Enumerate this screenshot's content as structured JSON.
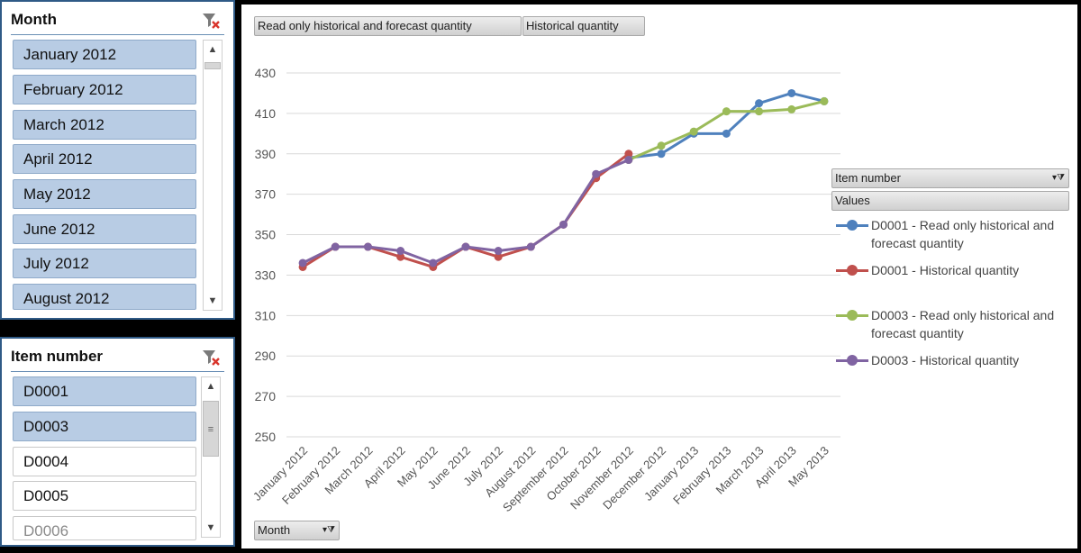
{
  "month_slicer": {
    "title": "Month",
    "items": [
      {
        "label": "January 2012",
        "selected": true
      },
      {
        "label": "February 2012",
        "selected": true
      },
      {
        "label": "March 2012",
        "selected": true
      },
      {
        "label": "April 2012",
        "selected": true
      },
      {
        "label": "May 2012",
        "selected": true
      },
      {
        "label": "June 2012",
        "selected": true
      },
      {
        "label": "July 2012",
        "selected": true
      },
      {
        "label": "August 2012",
        "selected": true
      }
    ]
  },
  "item_slicer": {
    "title": "Item number",
    "items": [
      {
        "label": "D0001",
        "selected": true
      },
      {
        "label": "D0003",
        "selected": true
      },
      {
        "label": "D0004",
        "selected": false
      },
      {
        "label": "D0005",
        "selected": false
      },
      {
        "label": "D0006",
        "selected": false
      }
    ]
  },
  "field_buttons": {
    "value_field_1": "Read only historical and forecast quantity",
    "value_field_2": "Historical quantity",
    "axis_field": "Month",
    "legend_field": "Item number",
    "values_label": "Values"
  },
  "icons": {
    "clear_filter": "clear-filter-icon",
    "scroll_up": "▲",
    "scroll_down": "▼",
    "dropdown": "▾"
  },
  "chart_data": {
    "type": "line",
    "title": "",
    "xlabel": "",
    "ylabel": "",
    "ylim": [
      250,
      430
    ],
    "yticks": [
      250,
      270,
      290,
      310,
      330,
      350,
      370,
      390,
      410,
      430
    ],
    "grid": true,
    "legend_position": "right",
    "categories": [
      "January 2012",
      "February 2012",
      "March 2012",
      "April 2012",
      "May 2012",
      "June 2012",
      "July 2012",
      "August 2012",
      "September 2012",
      "October 2012",
      "November 2012",
      "December 2012",
      "January 2013",
      "February 2013",
      "March 2013",
      "April 2013",
      "May 2013"
    ],
    "series": [
      {
        "name": "D0001 - Read only historical and forecast quantity",
        "color": "#4f81bd",
        "values": [
          null,
          null,
          null,
          null,
          null,
          null,
          null,
          null,
          null,
          null,
          388,
          390,
          400,
          400,
          415,
          420,
          416
        ]
      },
      {
        "name": "D0001 - Historical quantity",
        "color": "#c0504d",
        "values": [
          334,
          344,
          344,
          339,
          334,
          344,
          339,
          344,
          355,
          378,
          390,
          null,
          null,
          null,
          null,
          null,
          null
        ]
      },
      {
        "name": "D0003 - Read only historical and forecast quantity",
        "color": "#9bbb59",
        "values": [
          null,
          null,
          null,
          null,
          null,
          null,
          null,
          null,
          null,
          null,
          387,
          394,
          401,
          411,
          411,
          412,
          416
        ]
      },
      {
        "name": "D0003 - Historical quantity",
        "color": "#8064a2",
        "values": [
          336,
          344,
          344,
          342,
          336,
          344,
          342,
          344,
          355,
          380,
          387,
          null,
          null,
          null,
          null,
          null,
          null
        ]
      }
    ]
  }
}
